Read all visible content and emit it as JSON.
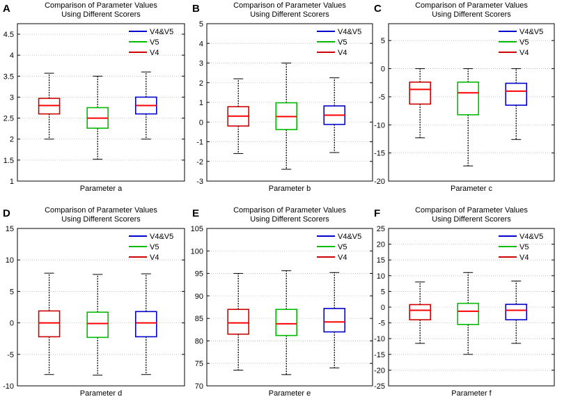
{
  "figure": {
    "series_colors": {
      "V4&V5": "#0000cc",
      "V5": "#00bb00",
      "V4": "#cc0000",
      "median": "#ff0000"
    }
  },
  "chart_data": [
    {
      "panel": "A",
      "type": "boxplot",
      "title": [
        "Comparison of Parameter Values",
        "Using Different Scorers"
      ],
      "xlabel": "Parameter a",
      "ylim": [
        1,
        4.75
      ],
      "yticks": [
        1,
        1.5,
        2,
        2.5,
        3,
        3.5,
        4,
        4.5
      ],
      "ytick_labels": [
        "1",
        "1.5",
        "2",
        "2.5",
        "3",
        "3.5",
        "4",
        "4.5"
      ],
      "legend": [
        "V4&V5",
        "V5",
        "V4"
      ],
      "boxes": [
        {
          "series": "V4",
          "whisker_low": 2.0,
          "q1": 2.6,
          "median": 2.8,
          "q3": 2.97,
          "whisker_high": 3.57
        },
        {
          "series": "V5",
          "whisker_low": 1.52,
          "q1": 2.26,
          "median": 2.5,
          "q3": 2.75,
          "whisker_high": 3.5
        },
        {
          "series": "V4&V5",
          "whisker_low": 2.0,
          "q1": 2.6,
          "median": 2.8,
          "q3": 3.0,
          "whisker_high": 3.6
        }
      ]
    },
    {
      "panel": "B",
      "type": "boxplot",
      "title": [
        "Comparison of Parameter Values",
        "Using Different Scorers"
      ],
      "xlabel": "Parameter b",
      "ylim": [
        -3,
        5
      ],
      "yticks": [
        -3,
        -2,
        -1,
        0,
        1,
        2,
        3,
        4,
        5
      ],
      "ytick_labels": [
        "-3",
        "-2",
        "-1",
        "0",
        "1",
        "2",
        "3",
        "4",
        "5"
      ],
      "legend": [
        "V4&V5",
        "V5",
        "V4"
      ],
      "boxes": [
        {
          "series": "V4",
          "whisker_low": -1.6,
          "q1": -0.2,
          "median": 0.3,
          "q3": 0.78,
          "whisker_high": 2.2
        },
        {
          "series": "V5",
          "whisker_low": -2.4,
          "q1": -0.38,
          "median": 0.28,
          "q3": 0.98,
          "whisker_high": 3.0
        },
        {
          "series": "V4&V5",
          "whisker_low": -1.55,
          "q1": -0.12,
          "median": 0.35,
          "q3": 0.82,
          "whisker_high": 2.25
        }
      ]
    },
    {
      "panel": "C",
      "type": "boxplot",
      "title": [
        "Comparison of Parameter Values",
        "Using Different Scorers"
      ],
      "xlabel": "Parameter c",
      "ylim": [
        -20,
        8
      ],
      "yticks": [
        -20,
        -15,
        -10,
        -5,
        0,
        5
      ],
      "ytick_labels": [
        "-20",
        "-15",
        "-10",
        "-5",
        "0",
        "5"
      ],
      "legend": [
        "V4&V5",
        "V5",
        "V4"
      ],
      "boxes": [
        {
          "series": "V4",
          "whisker_low": -12.3,
          "q1": -6.3,
          "median": -3.7,
          "q3": -2.4,
          "whisker_high": 0
        },
        {
          "series": "V5",
          "whisker_low": -17.3,
          "q1": -8.2,
          "median": -4.3,
          "q3": -2.4,
          "whisker_high": 0
        },
        {
          "series": "V4&V5",
          "whisker_low": -12.6,
          "q1": -6.5,
          "median": -4.0,
          "q3": -2.6,
          "whisker_high": 0
        }
      ]
    },
    {
      "panel": "D",
      "type": "boxplot",
      "title": [
        "Comparison of Parameter Values",
        "Using Different Scorers"
      ],
      "xlabel": "Parameter d",
      "ylim": [
        -10,
        15
      ],
      "yticks": [
        -10,
        -5,
        0,
        5,
        10,
        15
      ],
      "ytick_labels": [
        "-10",
        "-5",
        "0",
        "5",
        "10",
        "15"
      ],
      "legend": [
        "V4&V5",
        "V5",
        "V4"
      ],
      "boxes": [
        {
          "series": "V4",
          "whisker_low": -8.2,
          "q1": -2.2,
          "median": 0,
          "q3": 1.9,
          "whisker_high": 7.9
        },
        {
          "series": "V5",
          "whisker_low": -8.3,
          "q1": -2.3,
          "median": -0.1,
          "q3": 1.7,
          "whisker_high": 7.7
        },
        {
          "series": "V4&V5",
          "whisker_low": -8.2,
          "q1": -2.2,
          "median": 0,
          "q3": 1.8,
          "whisker_high": 7.8
        }
      ]
    },
    {
      "panel": "E",
      "type": "boxplot",
      "title": [
        "Comparison of Parameter Values",
        "Using Different Scorers"
      ],
      "xlabel": "Parameter e",
      "ylim": [
        70,
        105
      ],
      "yticks": [
        70,
        75,
        80,
        85,
        90,
        95,
        100,
        105
      ],
      "ytick_labels": [
        "70",
        "75",
        "80",
        "85",
        "90",
        "95",
        "100",
        "105"
      ],
      "legend": [
        "V4&V5",
        "V5",
        "V4"
      ],
      "boxes": [
        {
          "series": "V4",
          "whisker_low": 73.5,
          "q1": 81.5,
          "median": 84.0,
          "q3": 87.0,
          "whisker_high": 95.0
        },
        {
          "series": "V5",
          "whisker_low": 72.5,
          "q1": 81.2,
          "median": 83.8,
          "q3": 87.0,
          "whisker_high": 95.6
        },
        {
          "series": "V4&V5",
          "whisker_low": 74.0,
          "q1": 82.0,
          "median": 84.2,
          "q3": 87.2,
          "whisker_high": 95.2
        }
      ]
    },
    {
      "panel": "F",
      "type": "boxplot",
      "title": [
        "Comparison of Parameter Values",
        "Using Different Scorers"
      ],
      "xlabel": "Parameter f",
      "ylim": [
        -25,
        25
      ],
      "yticks": [
        -25,
        -20,
        -15,
        -10,
        -5,
        0,
        5,
        10,
        15,
        20,
        25
      ],
      "ytick_labels": [
        "-25",
        "-20",
        "-15",
        "-10",
        "-5",
        "0",
        "5",
        "10",
        "15",
        "20",
        "25"
      ],
      "legend": [
        "V4&V5",
        "V5",
        "V4"
      ],
      "boxes": [
        {
          "series": "V4",
          "whisker_low": -11.5,
          "q1": -4.0,
          "median": -1.0,
          "q3": 0.8,
          "whisker_high": 8.0
        },
        {
          "series": "V5",
          "whisker_low": -15.0,
          "q1": -5.5,
          "median": -1.3,
          "q3": 1.2,
          "whisker_high": 11.0
        },
        {
          "series": "V4&V5",
          "whisker_low": -11.5,
          "q1": -4.0,
          "median": -1.0,
          "q3": 0.9,
          "whisker_high": 8.3
        }
      ]
    }
  ]
}
